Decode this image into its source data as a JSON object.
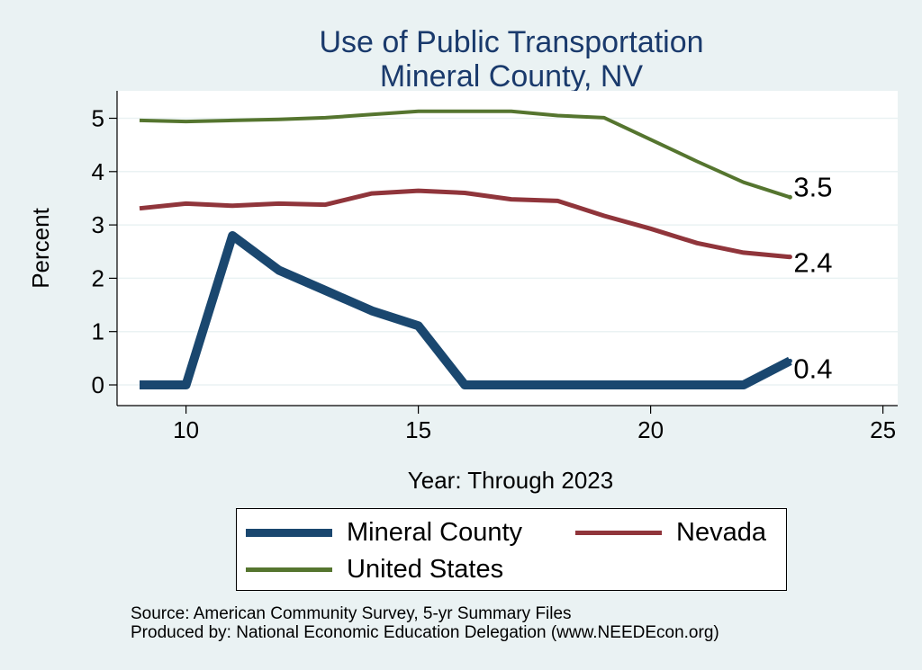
{
  "chart_data": {
    "type": "line",
    "title": [
      "Use of Public Transportation",
      "Mineral County, NV"
    ],
    "xlabel": "Year: Through 2023",
    "ylabel": "Percent",
    "xlim": [
      9,
      25
    ],
    "ylim": [
      -0.3,
      5.5
    ],
    "xticks": [
      10,
      15,
      20,
      25
    ],
    "yticks": [
      0,
      1,
      2,
      3,
      4,
      5
    ],
    "grid": true,
    "legend_position": "bottom",
    "series": [
      {
        "name": "Mineral County",
        "color": "#1a476f",
        "end_label": "0.4",
        "x": [
          9,
          10,
          11,
          12,
          13,
          14,
          15,
          16,
          17,
          18,
          19,
          20,
          21,
          22,
          23
        ],
        "y": [
          0,
          0,
          2.8,
          2.15,
          1.77,
          1.39,
          1.11,
          0,
          0,
          0,
          0,
          0,
          0,
          0,
          0.45
        ]
      },
      {
        "name": "Nevada",
        "color": "#90353b",
        "end_label": "2.4",
        "x": [
          9,
          10,
          11,
          12,
          13,
          14,
          15,
          16,
          17,
          18,
          19,
          20,
          21,
          22,
          23
        ],
        "y": [
          3.31,
          3.4,
          3.36,
          3.4,
          3.38,
          3.59,
          3.64,
          3.6,
          3.48,
          3.45,
          3.17,
          2.93,
          2.66,
          2.48,
          2.4
        ]
      },
      {
        "name": "United States",
        "color": "#55752f",
        "end_label": "3.5",
        "x": [
          9,
          10,
          11,
          12,
          13,
          14,
          15,
          16,
          17,
          18,
          19,
          20,
          21,
          22,
          23
        ],
        "y": [
          4.96,
          4.94,
          4.96,
          4.98,
          5.01,
          5.07,
          5.13,
          5.13,
          5.13,
          5.05,
          5.01,
          4.6,
          4.19,
          3.8,
          3.52
        ]
      }
    ],
    "source_lines": [
      "Source: American Community Survey, 5-yr Summary Files",
      "Produced by: National Economic Education Delegation (www.NEEDEcon.org)"
    ]
  }
}
